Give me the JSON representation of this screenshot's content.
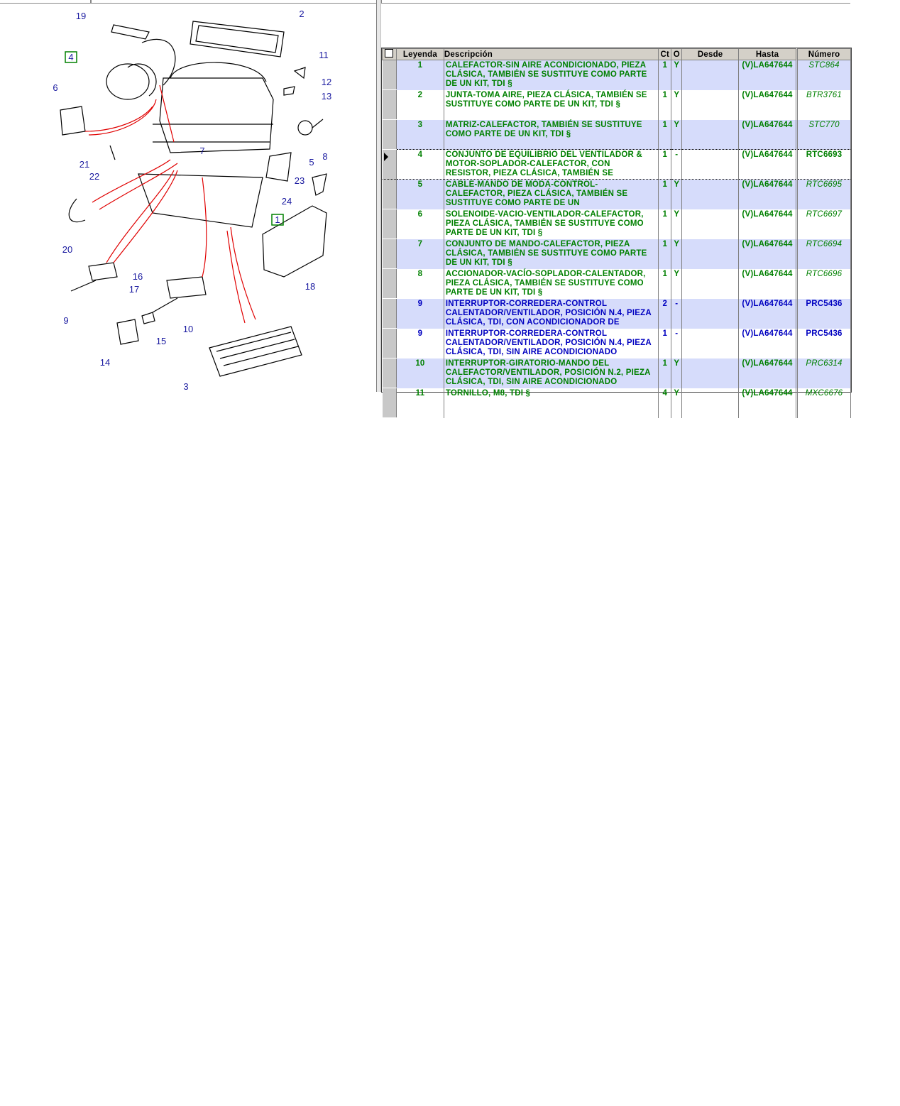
{
  "diagram": {
    "callouts": [
      "19",
      "2",
      "11",
      "12",
      "13",
      "6",
      "8",
      "7",
      "5",
      "21",
      "22",
      "23",
      "24",
      "20",
      "16",
      "17",
      "18",
      "9",
      "10",
      "15",
      "14",
      "3"
    ],
    "boxed_callouts": [
      "4",
      "1"
    ]
  },
  "table": {
    "headers": {
      "select_all": "",
      "leyenda": "Leyenda",
      "descripcion": "Descripción",
      "ct": "Ct",
      "o": "O",
      "desde": "Desde",
      "hasta": "Hasta",
      "numero": "Número"
    },
    "rows": [
      {
        "leyenda": "1",
        "descripcion": "CALEFACTOR-SIN AIRE ACONDICIONADO, PIEZA CLÁSICA, TAMBIÉN SE SUSTITUYE COMO PARTE DE UN KIT, TDI §",
        "ct": "1",
        "o": "Y",
        "desde": "",
        "hasta": "(V)LA647644",
        "numero": "STC864",
        "color": "green",
        "italic": true
      },
      {
        "leyenda": "2",
        "descripcion": "JUNTA-TOMA AIRE, PIEZA CLÁSICA, TAMBIÉN SE SUSTITUYE COMO PARTE DE UN KIT, TDI §",
        "ct": "1",
        "o": "Y",
        "desde": "",
        "hasta": "(V)LA647644",
        "numero": "BTR3761",
        "color": "green",
        "italic": true
      },
      {
        "leyenda": "3",
        "descripcion": "MATRIZ-CALEFACTOR, TAMBIÉN SE SUSTITUYE COMO PARTE DE UN KIT, TDI §",
        "ct": "1",
        "o": "Y",
        "desde": "",
        "hasta": "(V)LA647644",
        "numero": "STC770",
        "color": "green",
        "italic": true
      },
      {
        "leyenda": "4",
        "descripcion": "CONJUNTO DE EQUILIBRIO DEL VENTILADOR & MOTOR-SOPLADOR-CALEFACTOR, CON RESISTOR, PIEZA CLÁSICA, TAMBIÉN SE",
        "ct": "1",
        "o": "-",
        "desde": "",
        "hasta": "(V)LA647644",
        "numero": "RTC6693",
        "color": "green",
        "italic": false,
        "current": true
      },
      {
        "leyenda": "5",
        "descripcion": "CABLE-MANDO DE MODA-CONTROL-CALEFACTOR, PIEZA CLÁSICA, TAMBIÉN SE SUSTITUYE COMO PARTE DE UN",
        "ct": "1",
        "o": "Y",
        "desde": "",
        "hasta": "(V)LA647644",
        "numero": "RTC6695",
        "color": "green",
        "italic": true
      },
      {
        "leyenda": "6",
        "descripcion": "SOLENOIDE-VACIO-VENTILADOR-CALEFACTOR, PIEZA CLÁSICA, TAMBIÉN SE SUSTITUYE COMO PARTE DE UN KIT, TDI §",
        "ct": "1",
        "o": "Y",
        "desde": "",
        "hasta": "(V)LA647644",
        "numero": "RTC6697",
        "color": "green",
        "italic": true
      },
      {
        "leyenda": "7",
        "descripcion": "CONJUNTO DE MANDO-CALEFACTOR, PIEZA CLÁSICA, TAMBIÉN SE SUSTITUYE COMO PARTE DE UN KIT, TDI §",
        "ct": "1",
        "o": "Y",
        "desde": "",
        "hasta": "(V)LA647644",
        "numero": "RTC6694",
        "color": "green",
        "italic": true
      },
      {
        "leyenda": "8",
        "descripcion": "ACCIONADOR-VACÍO-SOPLADOR-CALENTADOR, PIEZA CLÁSICA, TAMBIÉN SE SUSTITUYE COMO PARTE DE UN KIT, TDI §",
        "ct": "1",
        "o": "Y",
        "desde": "",
        "hasta": "(V)LA647644",
        "numero": "RTC6696",
        "color": "green",
        "italic": true
      },
      {
        "leyenda": "9",
        "descripcion": "INTERRUPTOR-CORREDERA-CONTROL CALENTADOR/VENTILADOR, POSICIÓN N.4, PIEZA CLÁSICA, TDI, CON ACONDICIONADOR DE",
        "ct": "2",
        "o": "-",
        "desde": "",
        "hasta": "(V)LA647644",
        "numero": "PRC5436",
        "color": "blue",
        "italic": false
      },
      {
        "leyenda": "9",
        "descripcion": "INTERRUPTOR-CORREDERA-CONTROL CALENTADOR/VENTILADOR, POSICIÓN N.4, PIEZA CLÁSICA, TDI, SIN AIRE ACONDICIONADO",
        "ct": "1",
        "o": "-",
        "desde": "",
        "hasta": "(V)LA647644",
        "numero": "PRC5436",
        "color": "blue",
        "italic": false
      },
      {
        "leyenda": "10",
        "descripcion": "INTERRUPTOR-GIRATORIO-MANDO DEL CALEFACTOR/VENTILADOR, POSICIÓN N.2, PIEZA CLÁSICA, TDI, SIN AIRE ACONDICIONADO",
        "ct": "1",
        "o": "Y",
        "desde": "",
        "hasta": "(V)LA647644",
        "numero": "PRC6314",
        "color": "green",
        "italic": true
      },
      {
        "leyenda": "11",
        "descripcion": "TORNILLO, M8, TDI §",
        "ct": "4",
        "o": "Y",
        "desde": "",
        "hasta": "(V)LA647644",
        "numero": "MXC6676",
        "color": "green",
        "italic": true
      }
    ],
    "colors": {
      "green": "#008000",
      "blue": "#0000c0",
      "alt_row": "#d6dcfb"
    }
  }
}
